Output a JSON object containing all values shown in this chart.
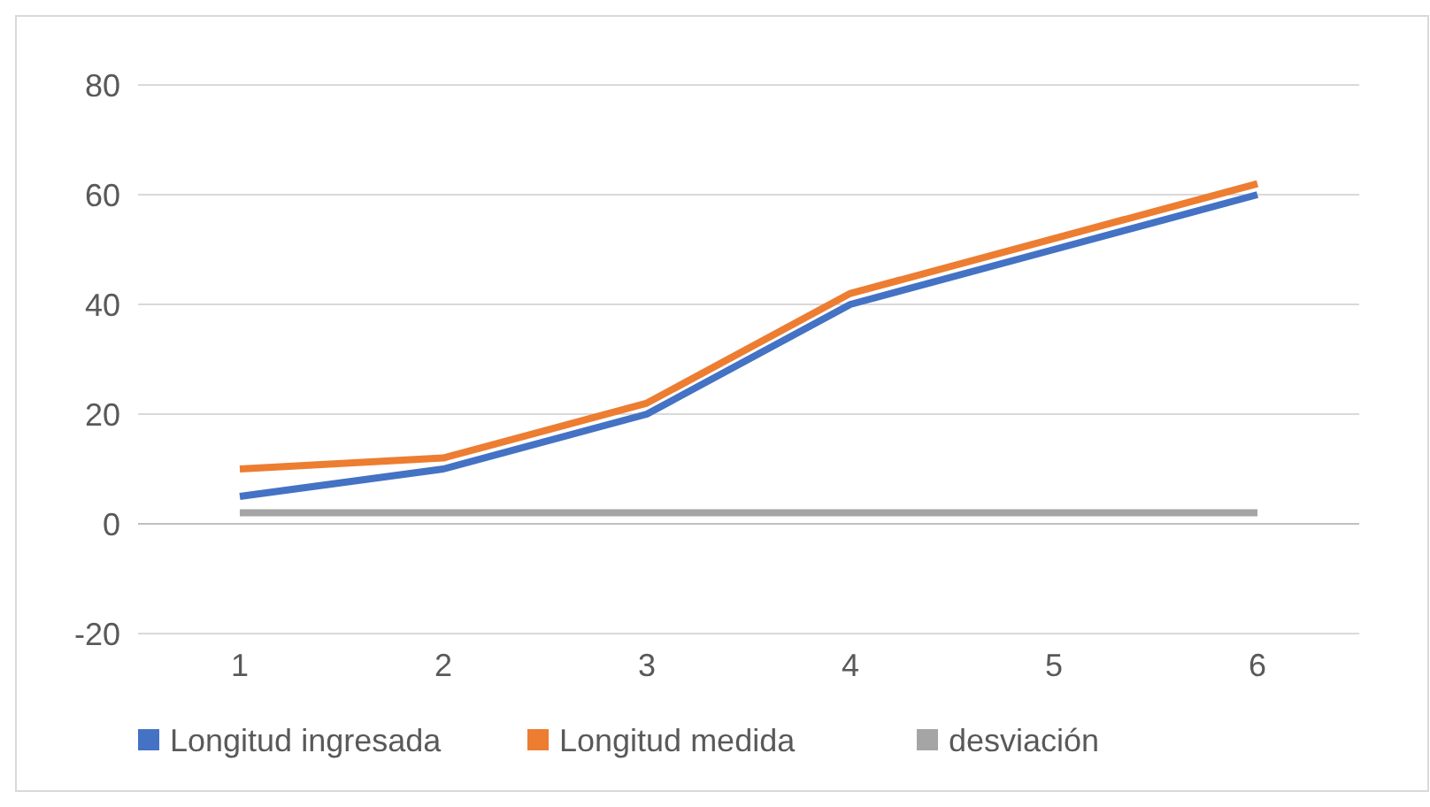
{
  "chart_data": {
    "type": "line",
    "categories": [
      "1",
      "2",
      "3",
      "4",
      "5",
      "6"
    ],
    "series": [
      {
        "name": "Longitud ingresada",
        "color": "#4472c4",
        "values": [
          5,
          10,
          20,
          40,
          50,
          60
        ]
      },
      {
        "name": "Longitud medida",
        "color": "#ed7d31",
        "values": [
          10,
          12,
          22,
          42,
          52,
          62
        ]
      },
      {
        "name": "desviación",
        "color": "#a5a5a5",
        "values": [
          2,
          2,
          2,
          2,
          2,
          2
        ]
      }
    ],
    "ylim": [
      -20,
      80
    ],
    "yticks": [
      -20,
      0,
      20,
      40,
      60,
      80
    ],
    "grid": "y",
    "legend": "bottom",
    "marker": "none",
    "line_style": "solid"
  }
}
